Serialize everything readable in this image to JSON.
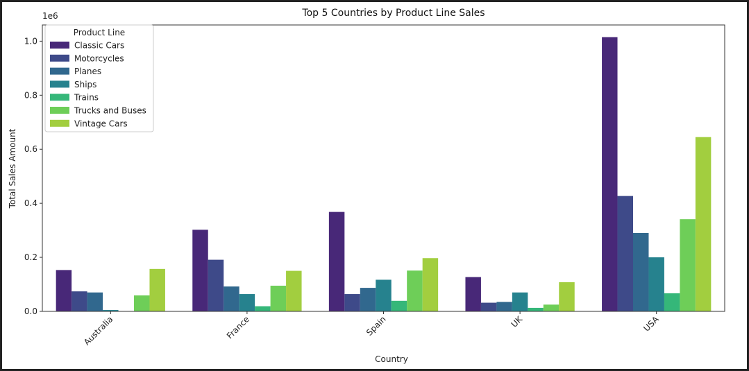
{
  "chart_data": {
    "type": "bar",
    "title": "Top 5 Countries by Product Line Sales",
    "xlabel": "Country",
    "ylabel": "Total Sales Amount",
    "y_offset_label": "1e6",
    "ylim": [
      0,
      1.06
    ],
    "yticks": [
      "0.0",
      "0.2",
      "0.4",
      "0.6",
      "0.8",
      "1.0"
    ],
    "ytick_values": [
      0,
      0.2,
      0.4,
      0.6,
      0.8,
      1.0
    ],
    "grid": false,
    "legend_placement": "upper-left",
    "legend_title": "Product Line",
    "categories": [
      "Australia",
      "France",
      "Spain",
      "UK",
      "USA"
    ],
    "series": [
      {
        "name": "Classic Cars",
        "color": "#482878",
        "values": [
          0.153,
          0.302,
          0.368,
          0.127,
          1.015
        ]
      },
      {
        "name": "Motorcycles",
        "color": "#3e4a89",
        "values": [
          0.074,
          0.191,
          0.064,
          0.032,
          0.427
        ]
      },
      {
        "name": "Planes",
        "color": "#31688e",
        "values": [
          0.07,
          0.092,
          0.087,
          0.035,
          0.29
        ]
      },
      {
        "name": "Ships",
        "color": "#26828e",
        "values": [
          0.005,
          0.064,
          0.117,
          0.07,
          0.2
        ]
      },
      {
        "name": "Trains",
        "color": "#35b779",
        "values": [
          0.0,
          0.019,
          0.039,
          0.013,
          0.067
        ]
      },
      {
        "name": "Trucks and Buses",
        "color": "#6ece58",
        "values": [
          0.059,
          0.095,
          0.151,
          0.025,
          0.341
        ]
      },
      {
        "name": "Vintage Cars",
        "color": "#a2ce3f",
        "values": [
          0.157,
          0.15,
          0.197,
          0.108,
          0.645
        ]
      }
    ]
  }
}
